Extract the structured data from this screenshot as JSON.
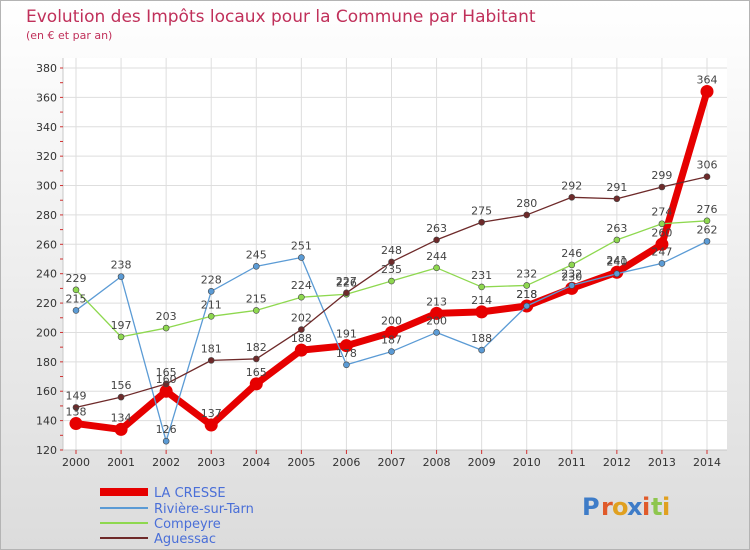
{
  "chart_data": {
    "type": "line",
    "title": "Evolution des Impôts locaux pour la Commune par Habitant",
    "subtitle": "(en € et par an)",
    "xlabel": "",
    "ylabel": "",
    "x": [
      "2000",
      "2001",
      "2002",
      "2003",
      "2004",
      "2005",
      "2006",
      "2007",
      "2008",
      "2009",
      "2010",
      "2011",
      "2012",
      "2013",
      "2014"
    ],
    "ylim": [
      120,
      380
    ],
    "yticks": [
      120,
      140,
      160,
      180,
      200,
      220,
      240,
      260,
      280,
      300,
      320,
      340,
      360,
      380
    ],
    "grid": true,
    "legend_position": "bottom-left",
    "series": [
      {
        "name": "LA CRESSE",
        "color": "#e60000",
        "values": [
          138,
          134,
          160,
          137,
          165,
          188,
          191,
          200,
          213,
          214,
          218,
          230,
          241,
          260,
          364
        ],
        "labels": [
          "138",
          "134",
          "160",
          "137",
          "165",
          "188",
          "191",
          "200",
          "213",
          "214",
          "218",
          "230",
          "241",
          "260",
          "364"
        ]
      },
      {
        "name": "Rivière-sur-Tarn",
        "color": "#5b9bd5",
        "values": [
          215,
          238,
          126,
          228,
          245,
          251,
          178,
          187,
          200,
          188,
          218,
          232,
          240,
          247,
          262
        ],
        "labels": [
          "215",
          "238",
          "126",
          "228",
          "245",
          "251",
          "178",
          "187",
          "200",
          "188",
          "218",
          "232",
          "240",
          "247",
          "262"
        ]
      },
      {
        "name": "Compeyre",
        "color": "#8ed84f",
        "values": [
          229,
          197,
          203,
          211,
          215,
          224,
          226,
          235,
          244,
          231,
          232,
          246,
          263,
          274,
          276
        ],
        "labels": [
          "229",
          "197",
          "203",
          "211",
          "215",
          "224",
          "226",
          "235",
          "244",
          "231",
          "232",
          "246",
          "263",
          "274",
          "276"
        ]
      },
      {
        "name": "Aguessac",
        "color": "#6e2a2a",
        "values": [
          149,
          156,
          165,
          181,
          182,
          202,
          227,
          248,
          263,
          275,
          280,
          292,
          291,
          299,
          306
        ],
        "labels": [
          "149",
          "156",
          "165",
          "181",
          "182",
          "202",
          "227",
          "248",
          "263",
          "275",
          "280",
          "292",
          "291",
          "299",
          "306"
        ]
      }
    ]
  },
  "brand": {
    "letters": [
      "P",
      "r",
      "o",
      "x",
      "i",
      "t",
      "i"
    ]
  }
}
